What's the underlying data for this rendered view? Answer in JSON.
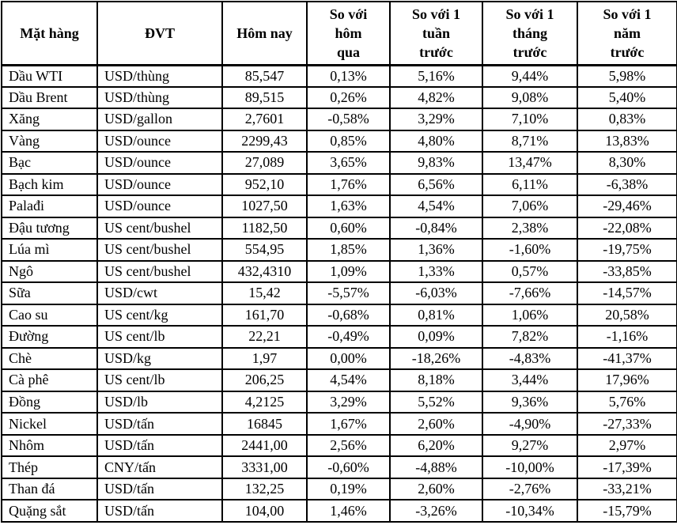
{
  "colors": {
    "background": "#ffffff",
    "border": "#000000",
    "text": "#000000"
  },
  "table": {
    "columns": [
      "Mặt hàng",
      "ĐVT",
      "Hôm nay",
      "So với\nhôm\nqua",
      "So với 1\ntuần\ntrước",
      "So với 1\ntháng\ntrước",
      "So với 1\nnăm\ntrước"
    ],
    "rows": [
      [
        "Dầu WTI",
        "USD/thùng",
        "85,547",
        "0,13%",
        "5,16%",
        "9,44%",
        "5,98%"
      ],
      [
        "Dầu Brent",
        "USD/thùng",
        "89,515",
        "0,26%",
        "4,82%",
        "9,08%",
        "5,40%"
      ],
      [
        "Xăng",
        "USD/gallon",
        "2,7601",
        "-0,58%",
        "3,29%",
        "7,10%",
        "0,83%"
      ],
      [
        "Vàng",
        "USD/ounce",
        "2299,43",
        "0,85%",
        "4,80%",
        "8,71%",
        "13,83%"
      ],
      [
        "Bạc",
        "USD/ounce",
        "27,089",
        "3,65%",
        "9,83%",
        "13,47%",
        "8,30%"
      ],
      [
        "Bạch kim",
        "USD/ounce",
        "952,10",
        "1,76%",
        "6,56%",
        "6,11%",
        "-6,38%"
      ],
      [
        "Palađi",
        "USD/ounce",
        "1027,50",
        "1,63%",
        "4,54%",
        "7,06%",
        "-29,46%"
      ],
      [
        "Đậu tương",
        "US cent/bushel",
        "1182,50",
        "0,60%",
        "-0,84%",
        "2,38%",
        "-22,08%"
      ],
      [
        "Lúa mì",
        "US cent/bushel",
        "554,95",
        "1,85%",
        "1,36%",
        "-1,60%",
        "-19,75%"
      ],
      [
        "Ngô",
        "US cent/bushel",
        "432,4310",
        "1,09%",
        "1,33%",
        "0,57%",
        "-33,85%"
      ],
      [
        "Sữa",
        "USD/cwt",
        "15,42",
        "-5,57%",
        "-6,03%",
        "-7,66%",
        "-14,57%"
      ],
      [
        "Cao su",
        "US cent/kg",
        "161,70",
        "-0,68%",
        "0,81%",
        "1,06%",
        "20,58%"
      ],
      [
        "Đường",
        "US cent/lb",
        "22,21",
        "-0,49%",
        "0,09%",
        "7,82%",
        "-1,16%"
      ],
      [
        "Chè",
        "USD/kg",
        "1,97",
        "0,00%",
        "-18,26%",
        "-4,83%",
        "-41,37%"
      ],
      [
        "Cà phê",
        "US cent/lb",
        "206,25",
        "4,54%",
        "8,18%",
        "3,44%",
        "17,96%"
      ],
      [
        "Đồng",
        "USD/lb",
        "4,2125",
        "3,29%",
        "5,52%",
        "9,36%",
        "5,76%"
      ],
      [
        "Nickel",
        "USD/tấn",
        "16845",
        "1,67%",
        "2,60%",
        "-4,90%",
        "-27,33%"
      ],
      [
        "Nhôm",
        "USD/tấn",
        "2441,00",
        "2,56%",
        "6,20%",
        "9,27%",
        "2,97%"
      ],
      [
        "Thép",
        "CNY/tấn",
        "3331,00",
        "-0,60%",
        "-4,88%",
        "-10,00%",
        "-17,39%"
      ],
      [
        "Than đá",
        "USD/tấn",
        "132,25",
        "0,19%",
        "2,60%",
        "-2,76%",
        "-33,21%"
      ],
      [
        "Quặng sắt",
        "USD/tấn",
        "104,00",
        "1,46%",
        "-3,26%",
        "-10,34%",
        "-15,79%"
      ]
    ]
  }
}
